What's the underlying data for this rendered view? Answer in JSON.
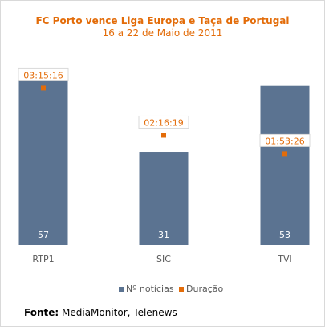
{
  "header": {
    "title": "FC Porto vence Liga Europa e Taça de Portugal",
    "subtitle": "16 a 22 de Maio de 2011"
  },
  "source": {
    "label": "Fonte:",
    "text": "MediaMonitor, Telenews"
  },
  "colors": {
    "bar": "#5b7391",
    "marker": "#e36c09",
    "title": "#e36c09",
    "bar_label": "#ffffff",
    "axis_label": "#595959"
  },
  "chart_data": {
    "type": "bar",
    "title": "FC Porto vence Liga Europa e Taça de Portugal",
    "subtitle": "16 a 22 de Maio de 2011",
    "categories": [
      "RTP1",
      "SIC",
      "TVI"
    ],
    "series": [
      {
        "name": "Nº notícias",
        "type": "bar",
        "values": [
          57,
          31,
          53
        ],
        "labels": [
          "57",
          "31",
          "53"
        ],
        "axis": "primary",
        "color": "#5b7391"
      },
      {
        "name": "Duração",
        "type": "marker",
        "values": [
          "03:15:16",
          "02:16:19",
          "01:53:26"
        ],
        "values_seconds": [
          11716,
          8179,
          6806
        ],
        "axis": "secondary",
        "color": "#e36c09"
      }
    ],
    "ylim": [
      0,
      58
    ],
    "y2lim": [
      0,
      13000
    ],
    "grid": false,
    "legend": "bottom"
  }
}
